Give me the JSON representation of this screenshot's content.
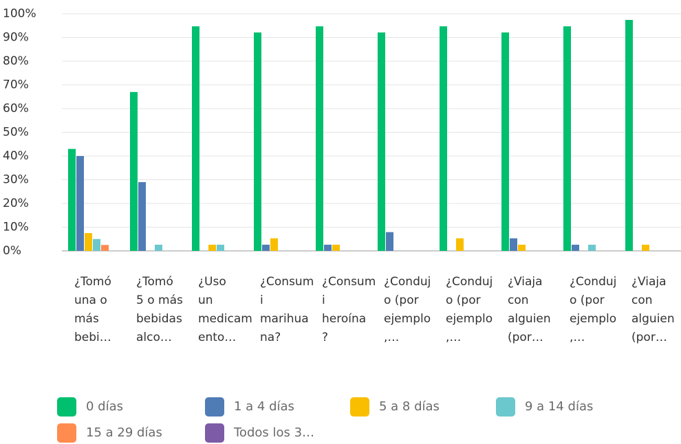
{
  "chart_data": {
    "type": "bar",
    "categories": [
      [
        "¿Tomó",
        "una o",
        "más",
        "bebi…"
      ],
      [
        "¿Tomó",
        "5 o más",
        "bebidas",
        "alco…"
      ],
      [
        "¿Uso",
        "un",
        "medicam",
        "ento…"
      ],
      [
        "¿Consum",
        "i",
        "marihua",
        "na?"
      ],
      [
        "¿Consum",
        "i",
        "heroína",
        "?"
      ],
      [
        "¿Conduj",
        "o (por",
        "ejemplo",
        ",…"
      ],
      [
        "¿Conduj",
        "o (por",
        "ejemplo",
        ",…"
      ],
      [
        "¿Viaja",
        "con",
        "alguien",
        "(por…"
      ],
      [
        "¿Conduj",
        "o (por",
        "ejemplo",
        ",…"
      ],
      [
        "¿Viaja",
        "con",
        "alguien",
        "(por…"
      ]
    ],
    "series": [
      {
        "name": "0 días",
        "color": "#00bf6f",
        "values": [
          43,
          67,
          94.7,
          92.1,
          94.7,
          92.1,
          94.7,
          92.1,
          94.7,
          97.4
        ]
      },
      {
        "name": "1 a 4 días",
        "color": "#507cb6",
        "values": [
          40,
          29,
          0,
          2.6,
          2.6,
          7.9,
          0,
          5.3,
          2.6,
          0
        ]
      },
      {
        "name": "5 a 8 días",
        "color": "#f9be00",
        "values": [
          7.5,
          0,
          2.6,
          5.3,
          2.6,
          0,
          5.3,
          2.6,
          0,
          2.6
        ]
      },
      {
        "name": "9 a 14 días",
        "color": "#6bc8cd",
        "values": [
          5,
          2.6,
          2.6,
          0,
          0,
          0,
          0,
          0,
          2.6,
          0
        ]
      },
      {
        "name": "15 a 29 días",
        "color": "#ff8b4f",
        "values": [
          2.5,
          0,
          0,
          0,
          0,
          0,
          0,
          0,
          0,
          0
        ]
      },
      {
        "name": "Todos los 3…",
        "color": "#7d5ba6",
        "values": [
          0,
          0,
          0,
          0,
          0,
          0,
          0,
          0,
          0,
          0
        ]
      }
    ],
    "ylim": [
      0,
      100
    ],
    "yticks": [
      {
        "value": 0,
        "label": "0%"
      },
      {
        "value": 10,
        "label": "10%"
      },
      {
        "value": 20,
        "label": "20%"
      },
      {
        "value": 30,
        "label": "30%"
      },
      {
        "value": 40,
        "label": "40%"
      },
      {
        "value": 50,
        "label": "50%"
      },
      {
        "value": 60,
        "label": "60%"
      },
      {
        "value": 70,
        "label": "70%"
      },
      {
        "value": 80,
        "label": "80%"
      },
      {
        "value": 90,
        "label": "90%"
      },
      {
        "value": 100,
        "label": "100%"
      }
    ],
    "grid": true
  }
}
